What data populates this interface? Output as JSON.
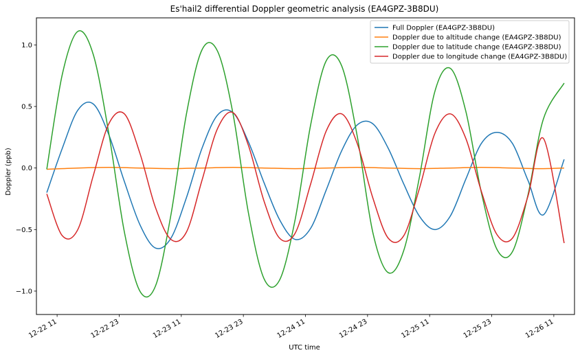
{
  "chart_data": {
    "type": "line",
    "title": "Es'hail2 differential Doppler geometric analysis (EA4GPZ-3B8DU)",
    "xlabel": "UTC time",
    "ylabel": "Doppler (ppb)",
    "xaxis_kind": "datetime",
    "xlim": [
      "2018-12-22T07:00",
      "2018-12-26T15:00"
    ],
    "ylim": [
      -1.19,
      1.22
    ],
    "x_ticks": [
      {
        "x": "2018-12-22T11:00",
        "label": "12-22 11"
      },
      {
        "x": "2018-12-22T23:00",
        "label": "12-22 23"
      },
      {
        "x": "2018-12-23T11:00",
        "label": "12-23 11"
      },
      {
        "x": "2018-12-23T23:00",
        "label": "12-23 23"
      },
      {
        "x": "2018-12-24T11:00",
        "label": "12-24 11"
      },
      {
        "x": "2018-12-24T23:00",
        "label": "12-24 23"
      },
      {
        "x": "2018-12-25T11:00",
        "label": "12-25 11"
      },
      {
        "x": "2018-12-25T23:00",
        "label": "12-25 23"
      },
      {
        "x": "2018-12-26T11:00",
        "label": "12-26 11"
      }
    ],
    "y_ticks": [
      {
        "y": 1.0,
        "label": "1.0"
      },
      {
        "y": 0.5,
        "label": "0.5"
      },
      {
        "y": 0.0,
        "label": "0.0"
      },
      {
        "y": -0.5,
        "label": "−0.5"
      },
      {
        "y": -1.0,
        "label": "−1.0"
      }
    ],
    "grid": false,
    "legend_position": "top-right",
    "series": [
      {
        "name": "Full Doppler (EA4GPZ-3B8DU)",
        "color": "#1f77b4",
        "x": [
          "2018-12-22T09:00",
          "2018-12-22T12:00",
          "2018-12-22T15:00",
          "2018-12-22T18:00",
          "2018-12-22T21:00",
          "2018-12-23T00:00",
          "2018-12-23T03:00",
          "2018-12-23T06:00",
          "2018-12-23T09:00",
          "2018-12-23T12:00",
          "2018-12-23T15:00",
          "2018-12-23T18:00",
          "2018-12-23T21:00",
          "2018-12-24T00:00",
          "2018-12-24T03:00",
          "2018-12-24T06:00",
          "2018-12-24T09:00",
          "2018-12-24T12:00",
          "2018-12-24T15:00",
          "2018-12-24T18:00",
          "2018-12-24T21:00",
          "2018-12-25T00:00",
          "2018-12-25T03:00",
          "2018-12-25T06:00",
          "2018-12-25T09:00",
          "2018-12-25T12:00",
          "2018-12-25T15:00",
          "2018-12-25T18:00",
          "2018-12-25T21:00",
          "2018-12-26T00:00",
          "2018-12-26T03:00",
          "2018-12-26T06:00",
          "2018-12-26T09:00",
          "2018-12-26T13:00"
        ],
        "y": [
          -0.2,
          0.16,
          0.47,
          0.52,
          0.27,
          -0.11,
          -0.46,
          -0.65,
          -0.57,
          -0.24,
          0.16,
          0.43,
          0.45,
          0.21,
          -0.12,
          -0.42,
          -0.58,
          -0.49,
          -0.18,
          0.14,
          0.35,
          0.36,
          0.16,
          -0.13,
          -0.39,
          -0.5,
          -0.39,
          -0.09,
          0.2,
          0.29,
          0.2,
          -0.1,
          -0.38,
          0.07
        ]
      },
      {
        "name": "Doppler due to altitude change (EA4GPZ-3B8DU)",
        "color": "#ff7f0e",
        "x": [
          "2018-12-22T09:00",
          "2018-12-22T15:00",
          "2018-12-22T21:00",
          "2018-12-23T03:00",
          "2018-12-23T09:00",
          "2018-12-23T15:00",
          "2018-12-23T21:00",
          "2018-12-24T03:00",
          "2018-12-24T09:00",
          "2018-12-24T15:00",
          "2018-12-24T21:00",
          "2018-12-25T03:00",
          "2018-12-25T09:00",
          "2018-12-25T15:00",
          "2018-12-25T21:00",
          "2018-12-26T03:00",
          "2018-12-26T09:00",
          "2018-12-26T13:00"
        ],
        "y": [
          -0.01,
          0.0,
          0.005,
          0.0,
          -0.005,
          0.0,
          0.005,
          0.0,
          -0.005,
          0.0,
          0.005,
          0.0,
          -0.005,
          0.0,
          0.005,
          0.0,
          -0.005,
          0.0
        ]
      },
      {
        "name": "Doppler due to latitude change (EA4GPZ-3B8DU)",
        "color": "#2ca02c",
        "x": [
          "2018-12-22T09:00",
          "2018-12-22T12:00",
          "2018-12-22T15:00",
          "2018-12-22T18:00",
          "2018-12-22T21:00",
          "2018-12-23T00:00",
          "2018-12-23T03:00",
          "2018-12-23T06:00",
          "2018-12-23T09:00",
          "2018-12-23T12:00",
          "2018-12-23T15:00",
          "2018-12-23T18:00",
          "2018-12-23T21:00",
          "2018-12-24T00:00",
          "2018-12-24T03:00",
          "2018-12-24T06:00",
          "2018-12-24T09:00",
          "2018-12-24T12:00",
          "2018-12-24T15:00",
          "2018-12-24T18:00",
          "2018-12-24T21:00",
          "2018-12-25T00:00",
          "2018-12-25T03:00",
          "2018-12-25T06:00",
          "2018-12-25T09:00",
          "2018-12-25T12:00",
          "2018-12-25T15:00",
          "2018-12-25T18:00",
          "2018-12-25T21:00",
          "2018-12-26T00:00",
          "2018-12-26T03:00",
          "2018-12-26T06:00",
          "2018-12-26T09:00",
          "2018-12-26T13:00"
        ],
        "y": [
          -0.01,
          0.76,
          1.11,
          0.92,
          0.28,
          -0.52,
          -1.0,
          -0.96,
          -0.38,
          0.44,
          0.96,
          0.95,
          0.44,
          -0.37,
          -0.9,
          -0.91,
          -0.42,
          0.35,
          0.87,
          0.83,
          0.26,
          -0.52,
          -0.85,
          -0.67,
          -0.08,
          0.62,
          0.81,
          0.46,
          -0.2,
          -0.66,
          -0.68,
          -0.22,
          0.4,
          0.69
        ]
      },
      {
        "name": "Doppler due to longitude change (EA4GPZ-3B8DU)",
        "color": "#d62728",
        "x": [
          "2018-12-22T09:00",
          "2018-12-22T12:00",
          "2018-12-22T15:00",
          "2018-12-22T18:00",
          "2018-12-22T21:00",
          "2018-12-23T00:00",
          "2018-12-23T03:00",
          "2018-12-23T06:00",
          "2018-12-23T09:00",
          "2018-12-23T12:00",
          "2018-12-23T15:00",
          "2018-12-23T18:00",
          "2018-12-23T21:00",
          "2018-12-24T00:00",
          "2018-12-24T03:00",
          "2018-12-24T06:00",
          "2018-12-24T09:00",
          "2018-12-24T12:00",
          "2018-12-24T15:00",
          "2018-12-24T18:00",
          "2018-12-24T21:00",
          "2018-12-25T00:00",
          "2018-12-25T03:00",
          "2018-12-25T06:00",
          "2018-12-25T09:00",
          "2018-12-25T12:00",
          "2018-12-25T15:00",
          "2018-12-25T18:00",
          "2018-12-25T21:00",
          "2018-12-26T00:00",
          "2018-12-26T03:00",
          "2018-12-26T06:00",
          "2018-12-26T09:00",
          "2018-12-26T13:00"
        ],
        "y": [
          -0.21,
          -0.55,
          -0.5,
          -0.06,
          0.36,
          0.44,
          0.12,
          -0.32,
          -0.58,
          -0.52,
          -0.1,
          0.32,
          0.45,
          0.18,
          -0.27,
          -0.57,
          -0.53,
          -0.13,
          0.3,
          0.44,
          0.2,
          -0.24,
          -0.57,
          -0.55,
          -0.17,
          0.28,
          0.44,
          0.24,
          -0.19,
          -0.54,
          -0.57,
          -0.23,
          0.24,
          -0.61
        ]
      }
    ]
  }
}
